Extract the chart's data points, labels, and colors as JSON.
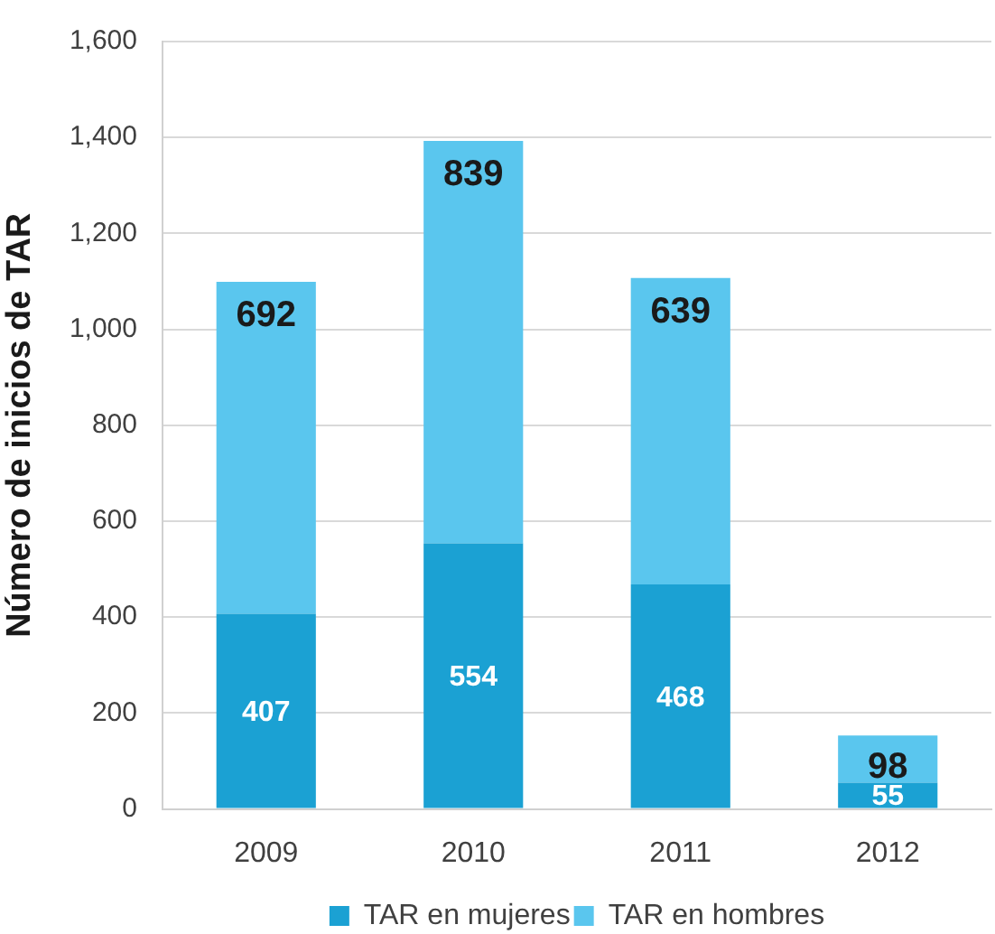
{
  "chart_data": {
    "type": "bar",
    "stacked": true,
    "ylabel": "Número de inicios de TAR",
    "categories": [
      "2009",
      "2010",
      "2011",
      "2012"
    ],
    "series": [
      {
        "name": "TAR en mujeres",
        "color": "#1ba1d3",
        "values": [
          407,
          554,
          468,
          55
        ]
      },
      {
        "name": "TAR en hombres",
        "color": "#5ac6ee",
        "values": [
          692,
          839,
          639,
          98
        ]
      }
    ],
    "ylim": [
      0,
      1600
    ],
    "yticks": [
      0,
      200,
      400,
      600,
      800,
      {
        "value": 1000,
        "label": "1,000"
      },
      {
        "value": 1200,
        "label": "1,200"
      },
      {
        "value": 1400,
        "label": "1,400"
      },
      {
        "value": 1600,
        "label": "1,600"
      }
    ],
    "grid": "y",
    "legend": "bottom",
    "data_labels": true
  }
}
